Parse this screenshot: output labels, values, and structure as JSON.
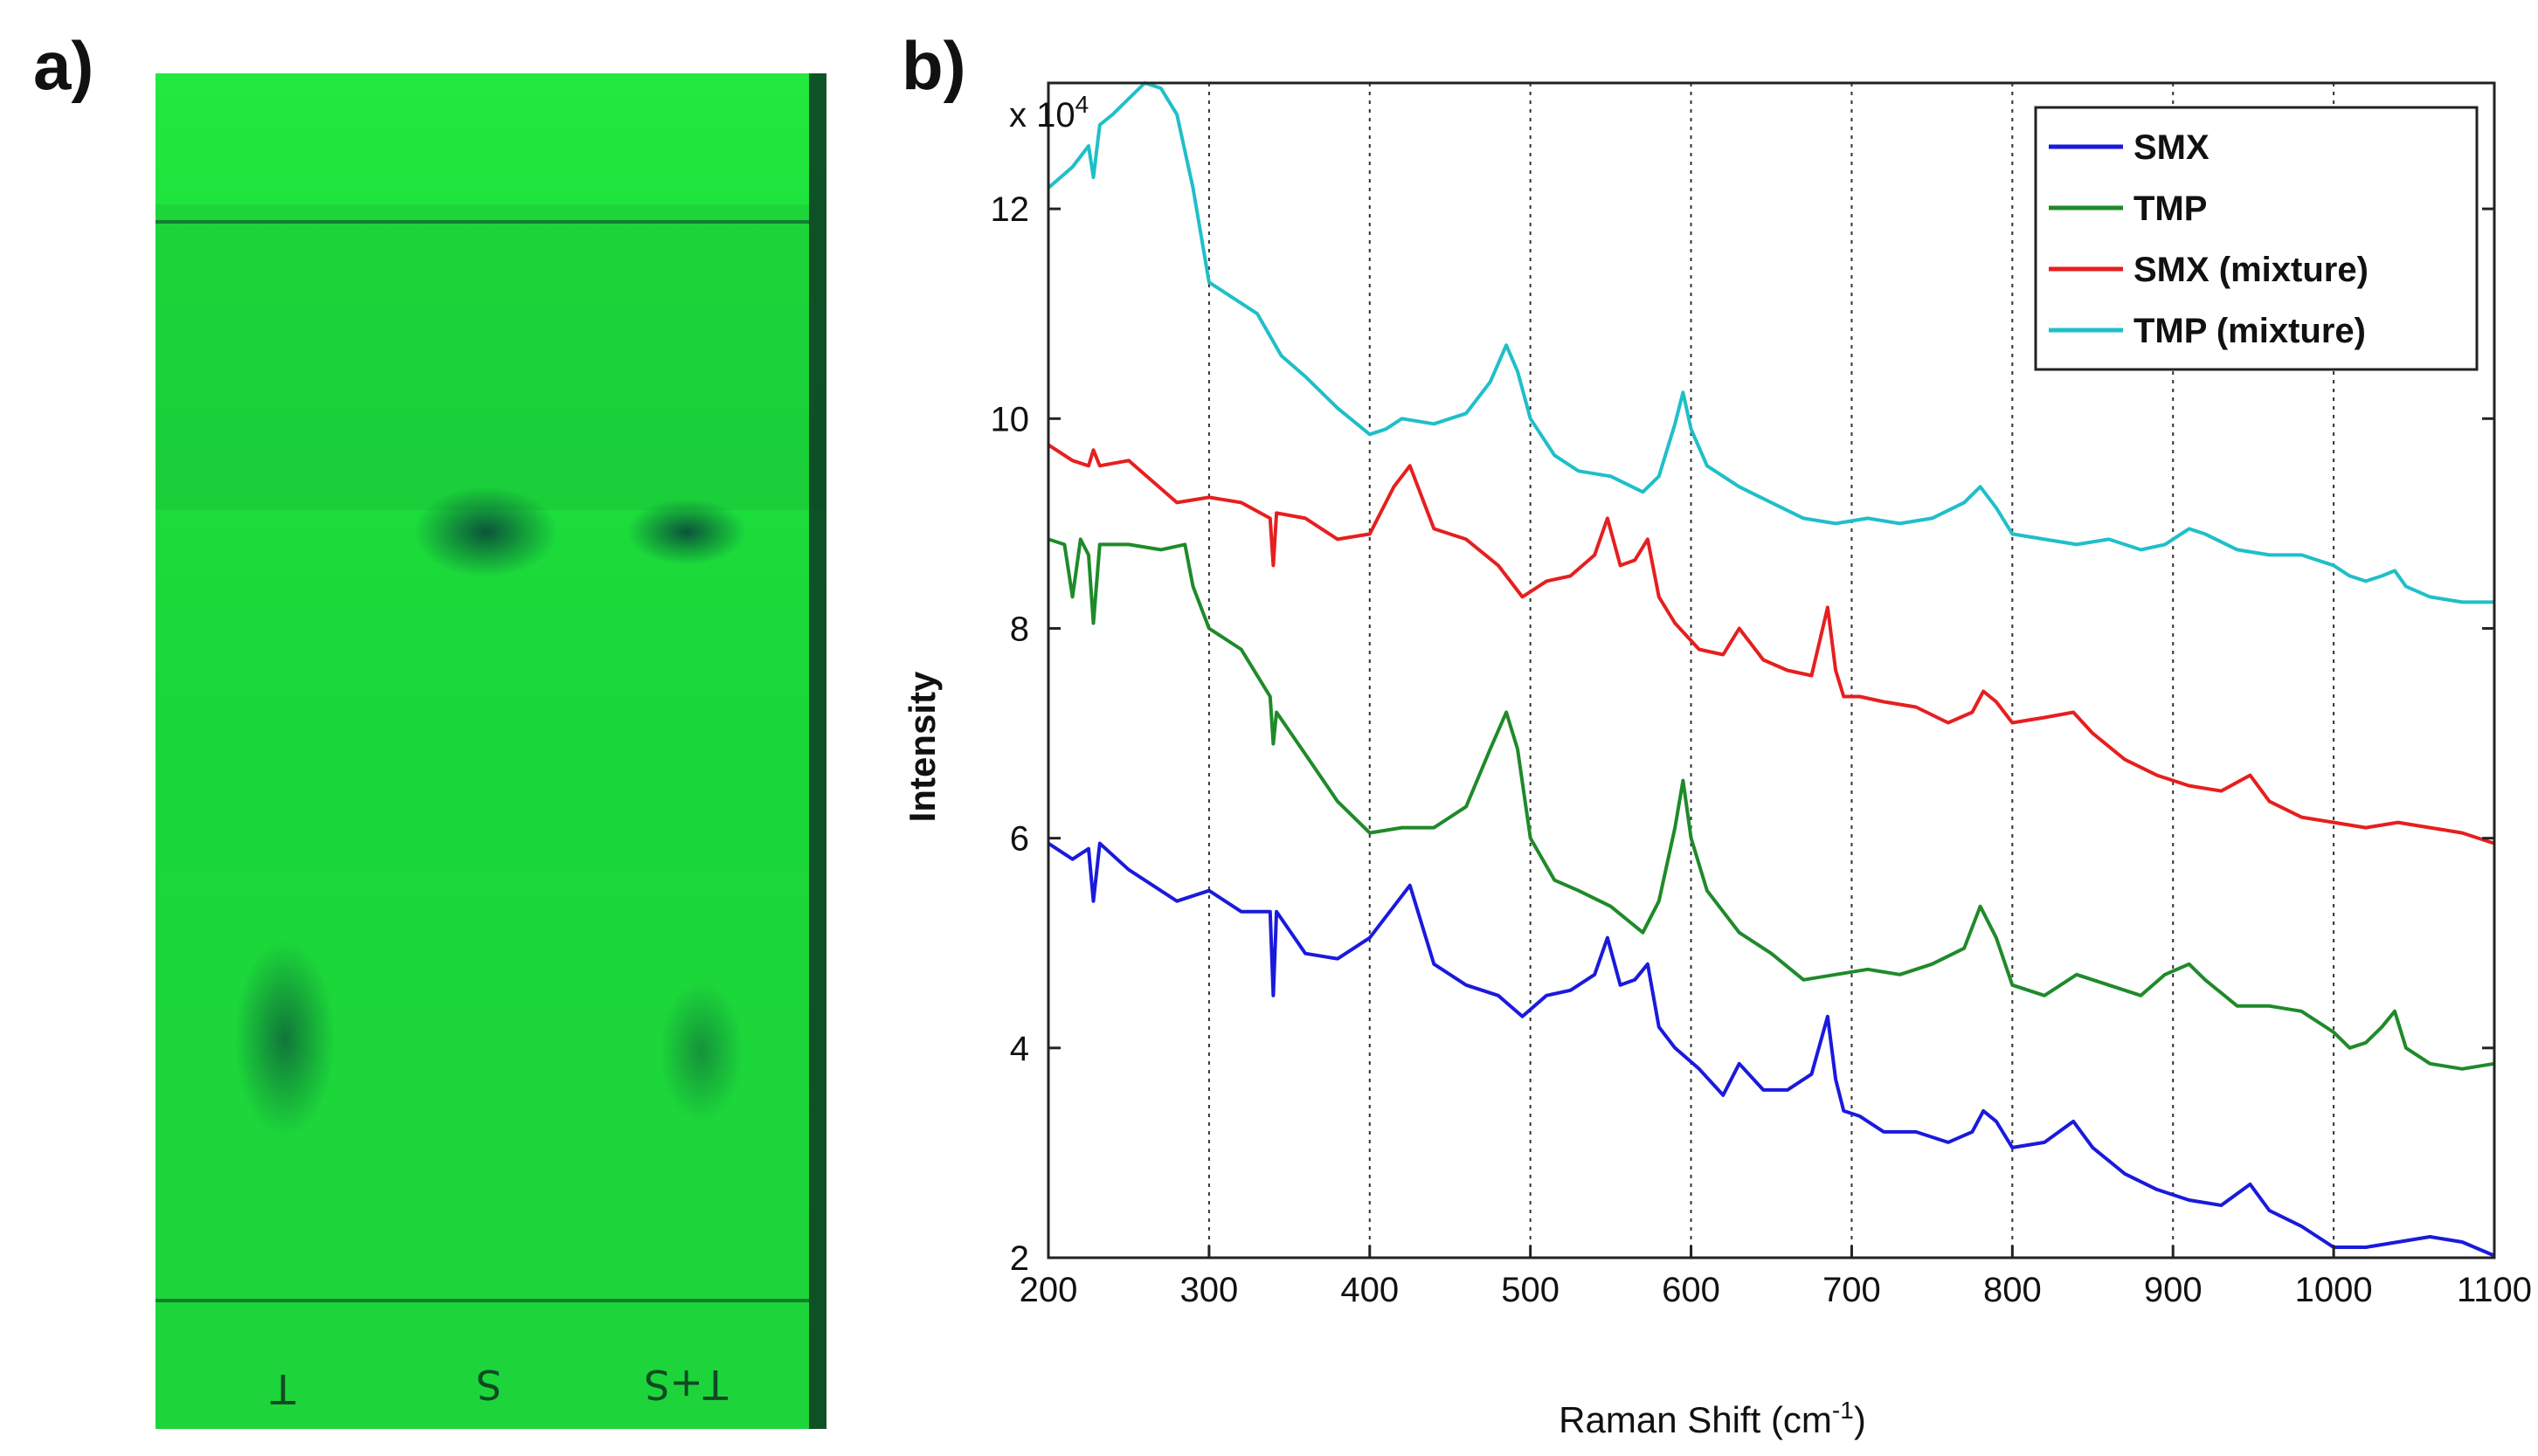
{
  "panels": {
    "a_label": "a)",
    "b_label": "b)"
  },
  "tlc_plate": {
    "lane_marks": [
      "T",
      "S",
      "T+S"
    ],
    "background_color": "#1ee83a",
    "spot_color": "#0f6b3a"
  },
  "chart_data": {
    "type": "line",
    "title": "",
    "xlabel": "Raman Shift (cm",
    "xlabel_sup": "-1",
    "xlabel_end": ")",
    "ylabel": "Intensity",
    "multiplier_text": "x 10",
    "multiplier_exp": "4",
    "xlim": [
      200,
      1100
    ],
    "ylim": [
      2,
      13.2
    ],
    "xticks": [
      200,
      300,
      400,
      500,
      600,
      700,
      800,
      900,
      1000,
      1100
    ],
    "yticks": [
      2,
      4,
      6,
      8,
      10,
      12
    ],
    "grid": "vertical dotted",
    "legend_position": "top-right",
    "series": [
      {
        "name": "SMX",
        "color": "#1a1adc",
        "x": [
          200,
          215,
          225,
          228,
          232,
          250,
          280,
          300,
          320,
          338,
          340,
          342,
          360,
          380,
          400,
          415,
          425,
          440,
          460,
          480,
          495,
          510,
          525,
          540,
          548,
          556,
          565,
          573,
          580,
          590,
          605,
          620,
          630,
          645,
          660,
          675,
          685,
          690,
          695,
          705,
          720,
          740,
          760,
          775,
          782,
          790,
          800,
          820,
          838,
          850,
          870,
          890,
          910,
          930,
          948,
          960,
          980,
          1000,
          1020,
          1040,
          1060,
          1080,
          1100
        ],
        "values": [
          5.95,
          5.8,
          5.9,
          5.4,
          5.95,
          5.7,
          5.4,
          5.5,
          5.3,
          5.3,
          4.5,
          5.3,
          4.9,
          4.85,
          5.05,
          5.35,
          5.55,
          4.8,
          4.6,
          4.5,
          4.3,
          4.5,
          4.55,
          4.7,
          5.05,
          4.6,
          4.65,
          4.8,
          4.2,
          4.0,
          3.8,
          3.55,
          3.85,
          3.6,
          3.6,
          3.75,
          4.3,
          3.7,
          3.4,
          3.35,
          3.2,
          3.2,
          3.1,
          3.2,
          3.4,
          3.3,
          3.05,
          3.1,
          3.3,
          3.05,
          2.8,
          2.65,
          2.55,
          2.5,
          2.7,
          2.45,
          2.3,
          2.1,
          2.1,
          2.15,
          2.2,
          2.15,
          2.02
        ]
      },
      {
        "name": "TMP",
        "color": "#1f8a2a",
        "x": [
          200,
          210,
          215,
          220,
          225,
          228,
          232,
          250,
          270,
          285,
          290,
          300,
          320,
          338,
          340,
          342,
          360,
          380,
          400,
          420,
          440,
          460,
          475,
          485,
          492,
          500,
          515,
          530,
          550,
          570,
          580,
          590,
          595,
          600,
          610,
          630,
          650,
          670,
          690,
          710,
          730,
          750,
          770,
          780,
          790,
          800,
          820,
          840,
          860,
          880,
          895,
          910,
          920,
          940,
          960,
          980,
          1000,
          1010,
          1020,
          1030,
          1038,
          1045,
          1060,
          1080,
          1100
        ],
        "values": [
          8.85,
          8.8,
          8.3,
          8.85,
          8.7,
          8.05,
          8.8,
          8.8,
          8.75,
          8.8,
          8.4,
          8.0,
          7.8,
          7.35,
          6.9,
          7.2,
          6.8,
          6.35,
          6.05,
          6.1,
          6.1,
          6.3,
          6.85,
          7.2,
          6.85,
          6.0,
          5.6,
          5.5,
          5.35,
          5.1,
          5.4,
          6.1,
          6.55,
          6.0,
          5.5,
          5.1,
          4.9,
          4.65,
          4.7,
          4.75,
          4.7,
          4.8,
          4.95,
          5.35,
          5.05,
          4.6,
          4.5,
          4.7,
          4.6,
          4.5,
          4.7,
          4.8,
          4.65,
          4.4,
          4.4,
          4.35,
          4.15,
          4.0,
          4.05,
          4.2,
          4.35,
          4.0,
          3.85,
          3.8,
          3.85
        ]
      },
      {
        "name": "SMX (mixture)",
        "color": "#e61f1f",
        "x": [
          200,
          215,
          225,
          228,
          232,
          250,
          280,
          300,
          320,
          338,
          340,
          342,
          360,
          380,
          400,
          415,
          425,
          440,
          460,
          480,
          495,
          510,
          525,
          540,
          548,
          556,
          565,
          573,
          580,
          590,
          605,
          620,
          630,
          645,
          660,
          675,
          685,
          690,
          695,
          705,
          720,
          740,
          760,
          775,
          782,
          790,
          800,
          820,
          838,
          850,
          870,
          890,
          910,
          930,
          948,
          960,
          980,
          1000,
          1020,
          1040,
          1060,
          1080,
          1100
        ],
        "values": [
          9.75,
          9.6,
          9.55,
          9.7,
          9.55,
          9.6,
          9.2,
          9.25,
          9.2,
          9.05,
          8.6,
          9.1,
          9.05,
          8.85,
          8.9,
          9.35,
          9.55,
          8.95,
          8.85,
          8.6,
          8.3,
          8.45,
          8.5,
          8.7,
          9.05,
          8.6,
          8.65,
          8.85,
          8.3,
          8.05,
          7.8,
          7.75,
          8.0,
          7.7,
          7.6,
          7.55,
          8.2,
          7.6,
          7.35,
          7.35,
          7.3,
          7.25,
          7.1,
          7.2,
          7.4,
          7.3,
          7.1,
          7.15,
          7.2,
          7.0,
          6.75,
          6.6,
          6.5,
          6.45,
          6.6,
          6.35,
          6.2,
          6.15,
          6.1,
          6.15,
          6.1,
          6.05,
          5.95
        ]
      },
      {
        "name": "TMP (mixture)",
        "color": "#1fbfc8",
        "x": [
          200,
          215,
          225,
          228,
          232,
          240,
          250,
          260,
          270,
          280,
          290,
          300,
          315,
          330,
          345,
          360,
          380,
          400,
          410,
          420,
          440,
          460,
          475,
          485,
          492,
          500,
          515,
          530,
          550,
          570,
          580,
          590,
          595,
          600,
          610,
          630,
          650,
          670,
          690,
          710,
          730,
          750,
          770,
          780,
          790,
          800,
          820,
          840,
          860,
          880,
          895,
          910,
          920,
          940,
          960,
          980,
          1000,
          1010,
          1020,
          1030,
          1038,
          1045,
          1060,
          1080,
          1100
        ],
        "values": [
          12.2,
          12.4,
          12.6,
          12.3,
          12.8,
          12.9,
          13.05,
          13.2,
          13.15,
          12.9,
          12.2,
          11.3,
          11.15,
          11.0,
          10.6,
          10.4,
          10.1,
          9.85,
          9.9,
          10.0,
          9.95,
          10.05,
          10.35,
          10.7,
          10.45,
          10.0,
          9.65,
          9.5,
          9.45,
          9.3,
          9.45,
          9.95,
          10.25,
          9.9,
          9.55,
          9.35,
          9.2,
          9.05,
          9.0,
          9.05,
          9.0,
          9.05,
          9.2,
          9.35,
          9.15,
          8.9,
          8.85,
          8.8,
          8.85,
          8.75,
          8.8,
          8.95,
          8.9,
          8.75,
          8.7,
          8.7,
          8.6,
          8.5,
          8.45,
          8.5,
          8.55,
          8.4,
          8.3,
          8.25,
          8.25
        ]
      }
    ]
  }
}
